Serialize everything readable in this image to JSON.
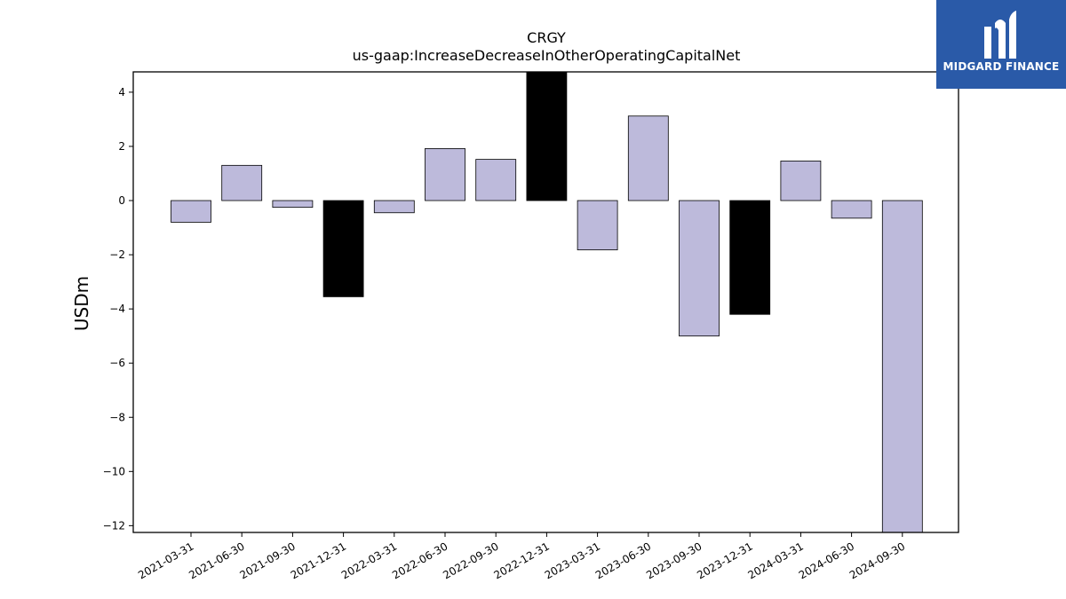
{
  "chart_data": {
    "type": "bar",
    "title": "CRGY",
    "subtitle": "us-gaap:IncreaseDecreaseInOtherOperatingCapitalNet",
    "xlabel": "",
    "ylabel": "USDm",
    "ylim": [
      -12.25,
      4.75
    ],
    "yticks": [
      4,
      2,
      0,
      -2,
      -4,
      -6,
      -8,
      -10,
      -12
    ],
    "categories": [
      "2021-03-31",
      "2021-06-30",
      "2021-09-30",
      "2021-12-31",
      "2022-03-31",
      "2022-06-30",
      "2022-09-30",
      "2022-12-31",
      "2023-03-31",
      "2023-06-30",
      "2023-09-30",
      "2023-12-31",
      "2024-03-31",
      "2024-06-30",
      "2024-09-30"
    ],
    "values": [
      -0.8,
      1.3,
      -0.25,
      -3.55,
      -0.45,
      1.92,
      1.52,
      4.75,
      -1.82,
      3.12,
      -5.0,
      -4.2,
      1.46,
      -0.65,
      -12.25
    ],
    "highlighted": [
      false,
      false,
      false,
      true,
      false,
      false,
      false,
      true,
      false,
      false,
      false,
      true,
      false,
      false,
      false
    ],
    "colors": {
      "bar": "#bdbadb",
      "highlight": "#000000",
      "edge": "#000000"
    },
    "grid": false
  },
  "logo": {
    "text": "MIDGARD FINANCE",
    "background": "#2a5aa8"
  }
}
